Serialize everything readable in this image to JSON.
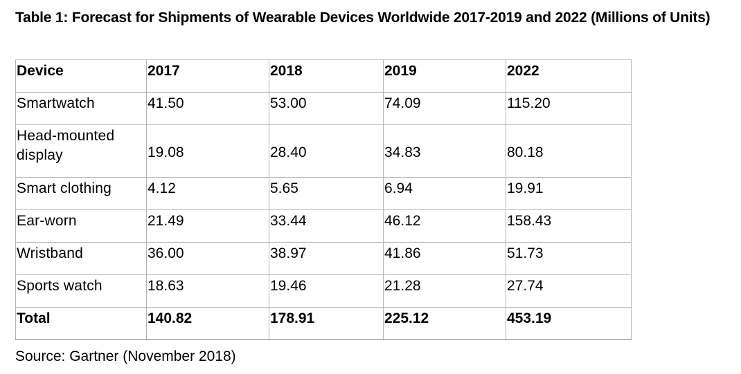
{
  "chart_data": {
    "type": "table",
    "title": "Table 1: Forecast for Shipments of Wearable Devices Worldwide 2017-2019 and 2022 (Millions of Units)",
    "columns": [
      "Device",
      "2017",
      "2018",
      "2019",
      "2022"
    ],
    "rows": [
      {
        "device": "Smartwatch",
        "values": [
          "41.50",
          "53.00",
          "74.09",
          "115.20"
        ]
      },
      {
        "device": "Head-mounted display",
        "values": [
          "19.08",
          "28.40",
          "34.83",
          "80.18"
        ]
      },
      {
        "device": "Smart clothing",
        "values": [
          "4.12",
          "5.65",
          "6.94",
          "19.91"
        ]
      },
      {
        "device": "Ear-worn",
        "values": [
          "21.49",
          "33.44",
          "46.12",
          "158.43"
        ]
      },
      {
        "device": "Wristband",
        "values": [
          "36.00",
          "38.97",
          "41.86",
          "51.73"
        ]
      },
      {
        "device": "Sports watch",
        "values": [
          "18.63",
          "19.46",
          "21.28",
          "27.74"
        ]
      }
    ],
    "total": {
      "label": "Total",
      "values": [
        "140.82",
        "178.91",
        "225.12",
        "453.19"
      ]
    },
    "source": "Source: Gartner (November 2018)"
  }
}
